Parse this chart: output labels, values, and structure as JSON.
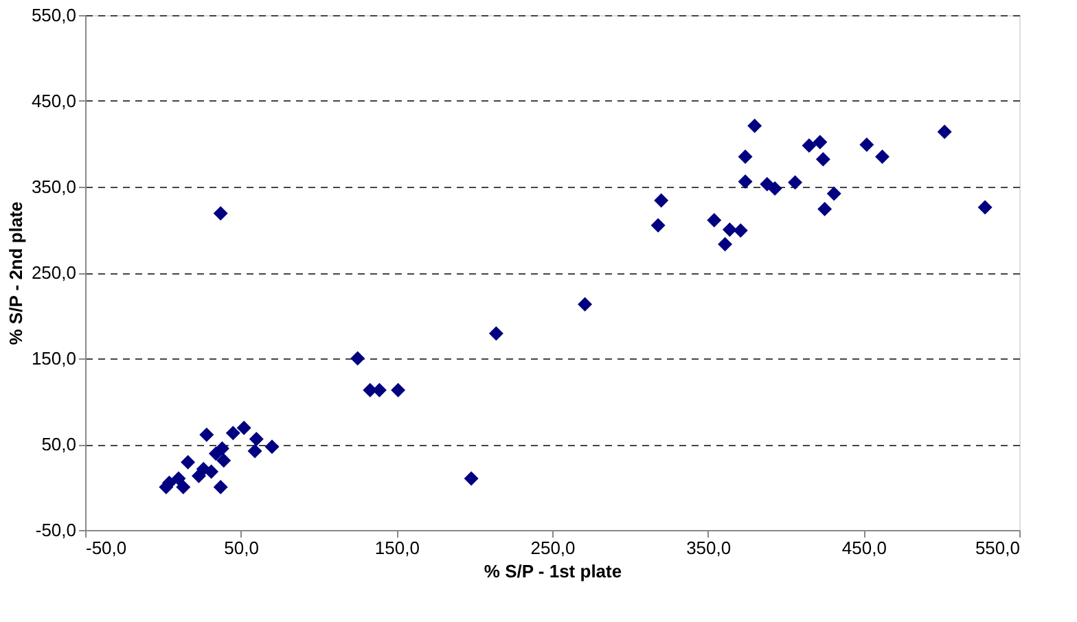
{
  "chart_data": {
    "type": "scatter",
    "xlabel": "% S/P - 1st plate",
    "ylabel": "% S/P - 2nd plate",
    "x": [
      380,
      374,
      374,
      320,
      318,
      354,
      364,
      371,
      361,
      388,
      393,
      406,
      415,
      422,
      424,
      431,
      425,
      452,
      462,
      502,
      528,
      271,
      214,
      125,
      133,
      139,
      151,
      198,
      37,
      28,
      52,
      45,
      60,
      70,
      59,
      39,
      37,
      23,
      16,
      13,
      2,
      4,
      31,
      26,
      10,
      38,
      34
    ],
    "series": [
      {
        "color": "#000080",
        "values": [
          421,
          385,
          356,
          334,
          305,
          311,
          300,
          299,
          283,
          353,
          348,
          355,
          398,
          402,
          382,
          342,
          324,
          399,
          385,
          414,
          326,
          213,
          179,
          150,
          113,
          113,
          113,
          10,
          319,
          61,
          69,
          63,
          56,
          47,
          42,
          31,
          0,
          13,
          29,
          0,
          0,
          5,
          18,
          21,
          10,
          45,
          39
        ]
      }
    ],
    "xlim": [
      -50,
      550
    ],
    "ylim": [
      -50,
      550
    ],
    "xticks": [
      {
        "value": -50,
        "label": "-50,0"
      },
      {
        "value": 50,
        "label": "50,0"
      },
      {
        "value": 150,
        "label": "150,0"
      },
      {
        "value": 250,
        "label": "250,0"
      },
      {
        "value": 350,
        "label": "350,0"
      },
      {
        "value": 450,
        "label": "450,0"
      },
      {
        "value": 550,
        "label": "550,0"
      }
    ],
    "yticks": [
      {
        "value": -50,
        "label": "-50,0"
      },
      {
        "value": 50,
        "label": "50,0"
      },
      {
        "value": 150,
        "label": "150,0"
      },
      {
        "value": 250,
        "label": "250,0"
      },
      {
        "value": 350,
        "label": "350,0"
      },
      {
        "value": 450,
        "label": "450,0"
      },
      {
        "value": 550,
        "label": "550,0"
      }
    ],
    "grid": "y",
    "marker": "diamond"
  }
}
